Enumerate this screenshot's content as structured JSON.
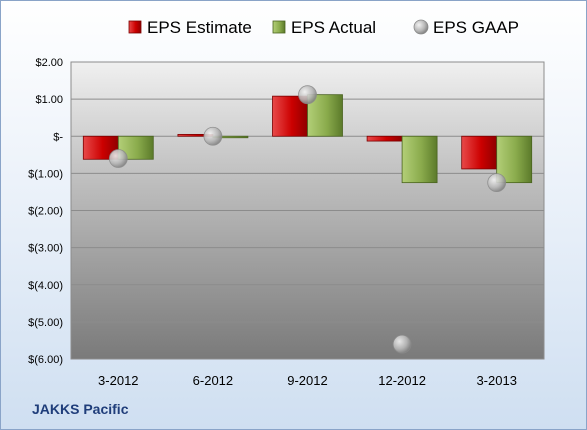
{
  "chart_data": {
    "type": "bar",
    "title": "",
    "xlabel": "",
    "ylabel": "",
    "categories": [
      "3-2012",
      "6-2012",
      "9-2012",
      "12-2012",
      "3-2013"
    ],
    "series": [
      {
        "name": "EPS Estimate",
        "kind": "bar",
        "color": "#cc0000",
        "values": [
          -0.62,
          0.05,
          1.08,
          -0.13,
          -0.88
        ]
      },
      {
        "name": "EPS Actual",
        "kind": "bar",
        "color": "#77933c",
        "values": [
          -0.62,
          -0.02,
          1.12,
          -1.25,
          -1.25
        ]
      },
      {
        "name": "EPS GAAP",
        "kind": "marker",
        "color": "#a6a6a6",
        "values": [
          -0.6,
          0.0,
          1.12,
          -5.6,
          -1.25
        ]
      }
    ],
    "ylim": [
      -6,
      2
    ],
    "yticks": [
      2,
      1,
      0,
      -1,
      -2,
      -3,
      -4,
      -5,
      -6
    ],
    "ytick_labels": [
      "$2.00",
      "$1.00",
      "$-",
      "$(1.00)",
      "$(2.00)",
      "$(3.00)",
      "$(4.00)",
      "$(5.00)",
      "$(6.00)"
    ],
    "grid": true,
    "legend_position": "top"
  },
  "footer": {
    "company": "JAKKS Pacific"
  }
}
